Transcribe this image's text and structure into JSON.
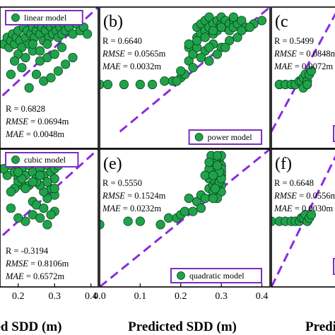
{
  "x_axis_title_left": "ed SDD (m)",
  "x_axis_title_center": "Predicted SDD (m)",
  "x_axis_title_right": "Predi",
  "colors": {
    "marker_fill": "#1fa34a",
    "marker_stroke": "#0b3d1c",
    "fit_line": "#8a2be2",
    "legend_border": "#7b2fbe",
    "axes": "#000000"
  },
  "chart_data": [
    {
      "panel": "a",
      "panel_label": "",
      "type": "scatter",
      "legend": "linear model",
      "legend_position": "top-left",
      "stats": {
        "r": "R = 0.6828",
        "rmse_label": "RMSE",
        "rmse_value": " = 0.0694m",
        "mae_label": "MAE",
        "mae_value": " = 0.0048m"
      },
      "stats_position": "bottom-left",
      "xlim": [
        0.15,
        0.42
      ],
      "ylim": [
        0,
        0.42
      ],
      "x_ticks": [],
      "x_tick_labels": [],
      "fit_line": [
        [
          0.1,
          0.1
        ],
        [
          0.42,
          0.42
        ]
      ],
      "x": [
        0.16,
        0.17,
        0.175,
        0.18,
        0.185,
        0.19,
        0.195,
        0.2,
        0.205,
        0.21,
        0.215,
        0.22,
        0.225,
        0.23,
        0.235,
        0.24,
        0.245,
        0.25,
        0.255,
        0.26,
        0.265,
        0.27,
        0.275,
        0.28,
        0.285,
        0.29,
        0.295,
        0.3,
        0.305,
        0.31,
        0.315,
        0.32,
        0.325,
        0.33,
        0.34,
        0.35,
        0.36,
        0.37,
        0.38,
        0.39,
        0.2,
        0.22,
        0.24,
        0.26,
        0.28,
        0.3,
        0.32,
        0.25,
        0.27,
        0.29,
        0.31,
        0.33,
        0.35,
        0.23,
        0.21,
        0.19,
        0.18,
        0.24,
        0.26,
        0.28
      ],
      "y": [
        0.31,
        0.33,
        0.3,
        0.32,
        0.34,
        0.31,
        0.33,
        0.35,
        0.32,
        0.3,
        0.36,
        0.33,
        0.35,
        0.31,
        0.34,
        0.36,
        0.33,
        0.35,
        0.37,
        0.34,
        0.36,
        0.32,
        0.35,
        0.37,
        0.33,
        0.36,
        0.34,
        0.37,
        0.35,
        0.33,
        0.36,
        0.34,
        0.37,
        0.35,
        0.36,
        0.34,
        0.37,
        0.35,
        0.36,
        0.34,
        0.28,
        0.27,
        0.29,
        0.26,
        0.27,
        0.28,
        0.3,
        0.22,
        0.2,
        0.21,
        0.23,
        0.25,
        0.27,
        0.18,
        0.24,
        0.26,
        0.22,
        0.31,
        0.29,
        0.31
      ]
    },
    {
      "panel": "b",
      "panel_label": "(b)",
      "type": "scatter",
      "legend": "power model",
      "legend_position": "bottom-right",
      "stats": {
        "r": "R = 0.6640",
        "rmse_label": "RMSE",
        "rmse_value": " = 0.0565m",
        "mae_label": "MAE",
        "mae_value": " = 0.0032m"
      },
      "stats_position": "top-left",
      "xlim": [
        0,
        0.42
      ],
      "ylim": [
        0,
        0.42
      ],
      "x_ticks": [],
      "x_tick_labels": [],
      "fit_line": [
        [
          0.05,
          0.05
        ],
        [
          0.42,
          0.42
        ]
      ],
      "x": [
        0.0,
        0.02,
        0.06,
        0.1,
        0.13,
        0.16,
        0.18,
        0.2,
        0.21,
        0.22,
        0.22,
        0.23,
        0.24,
        0.24,
        0.25,
        0.25,
        0.26,
        0.26,
        0.27,
        0.27,
        0.28,
        0.28,
        0.29,
        0.29,
        0.3,
        0.3,
        0.31,
        0.31,
        0.32,
        0.32,
        0.33,
        0.33,
        0.34,
        0.35,
        0.36,
        0.38,
        0.4,
        0.22,
        0.24,
        0.26,
        0.28,
        0.3,
        0.32,
        0.34,
        0.25,
        0.27,
        0.29,
        0.31,
        0.23,
        0.21,
        0.2,
        0.19,
        0.24,
        0.26,
        0.28,
        0.3,
        0.33,
        0.35,
        0.37,
        0.27
      ],
      "y": [
        0.19,
        0.19,
        0.19,
        0.19,
        0.19,
        0.2,
        0.2,
        0.21,
        0.22,
        0.26,
        0.3,
        0.28,
        0.33,
        0.36,
        0.34,
        0.37,
        0.35,
        0.38,
        0.36,
        0.39,
        0.37,
        0.34,
        0.38,
        0.35,
        0.37,
        0.39,
        0.36,
        0.38,
        0.37,
        0.35,
        0.38,
        0.36,
        0.37,
        0.38,
        0.36,
        0.37,
        0.38,
        0.31,
        0.3,
        0.29,
        0.31,
        0.3,
        0.32,
        0.33,
        0.27,
        0.26,
        0.28,
        0.3,
        0.24,
        0.22,
        0.23,
        0.2,
        0.32,
        0.33,
        0.35,
        0.36,
        0.39,
        0.35,
        0.36,
        0.3
      ]
    },
    {
      "panel": "c",
      "panel_label": "(c",
      "type": "scatter",
      "legend": "",
      "legend_position": "bottom-right",
      "stats": {
        "r": "R = 0.5499",
        "rmse_label": "RMSE",
        "rmse_value": " = 0.0848m",
        "mae_label": "MAE",
        "mae_value": " = 0.0072m"
      },
      "stats_position": "top-left",
      "xlim": [
        0,
        0.17
      ],
      "ylim": [
        0,
        0.42
      ],
      "x_ticks": [],
      "x_tick_labels": [],
      "fit_line": [
        [
          0.0,
          0.05
        ],
        [
          0.17,
          0.42
        ]
      ],
      "x": [
        0.02,
        0.035,
        0.05,
        0.06,
        0.07,
        0.075,
        0.08,
        0.085,
        0.09,
        0.095,
        0.1,
        0.08,
        0.09
      ],
      "y": [
        0.19,
        0.19,
        0.19,
        0.19,
        0.2,
        0.2,
        0.21,
        0.22,
        0.2,
        0.22,
        0.23,
        0.18,
        0.19
      ]
    },
    {
      "panel": "d",
      "panel_label": "",
      "type": "scatter",
      "legend": "cubic model",
      "legend_position": "top-left",
      "stats": {
        "r": "R = -0.3194",
        "rmse_label": "RMSE",
        "rmse_value": " = 0.8106m",
        "mae_label": "MAE",
        "mae_value": " = 0.6572m"
      },
      "stats_position": "bottom-right",
      "xlim": [
        0.15,
        0.42
      ],
      "ylim": [
        0,
        0.42
      ],
      "x_ticks": [
        0.2,
        0.3,
        0.4
      ],
      "x_tick_labels": [
        "0.2",
        "0.3",
        "0.4"
      ],
      "fit_line": [
        [
          0.1,
          0.1
        ],
        [
          0.42,
          0.42
        ]
      ],
      "x": [
        0.16,
        0.17,
        0.18,
        0.19,
        0.2,
        0.21,
        0.22,
        0.23,
        0.24,
        0.25,
        0.26,
        0.27,
        0.28,
        0.29,
        0.3,
        0.3,
        0.3,
        0.29,
        0.28,
        0.27,
        0.26,
        0.25,
        0.24,
        0.23,
        0.22,
        0.21,
        0.2,
        0.19,
        0.18,
        0.3,
        0.29,
        0.28,
        0.27,
        0.26,
        0.25,
        0.24,
        0.23,
        0.22,
        0.21,
        0.2,
        0.22,
        0.24,
        0.26,
        0.28,
        0.3,
        0.16,
        0.18,
        0.2,
        0.25,
        0.27,
        0.29,
        0.3,
        0.24,
        0.26,
        0.28,
        0.31
      ],
      "y": [
        0.36,
        0.34,
        0.37,
        0.35,
        0.33,
        0.36,
        0.34,
        0.37,
        0.35,
        0.33,
        0.36,
        0.34,
        0.37,
        0.35,
        0.33,
        0.36,
        0.38,
        0.39,
        0.38,
        0.39,
        0.38,
        0.39,
        0.38,
        0.39,
        0.38,
        0.31,
        0.32,
        0.3,
        0.29,
        0.28,
        0.3,
        0.27,
        0.29,
        0.31,
        0.32,
        0.26,
        0.31,
        0.3,
        0.33,
        0.35,
        0.2,
        0.22,
        0.21,
        0.19,
        0.23,
        0.36,
        0.24,
        0.21,
        0.25,
        0.24,
        0.22,
        0.3,
        0.32,
        0.34,
        0.32,
        0.37
      ]
    },
    {
      "panel": "e",
      "panel_label": "(e)",
      "type": "scatter",
      "legend": "quadratic model",
      "legend_position": "bottom-right",
      "stats": {
        "r": "R = 0.5550",
        "rmse_label": "RMSE",
        "rmse_value": " = 0.1524m",
        "mae_label": "MAE",
        "mae_value": " = 0.0232m"
      },
      "stats_position": "top-left",
      "xlim": [
        0,
        0.42
      ],
      "ylim": [
        0,
        0.42
      ],
      "x_ticks": [
        0.0,
        0.1,
        0.2,
        0.3,
        0.4
      ],
      "x_tick_labels": [
        "0.0",
        "0.1",
        "0.2",
        "0.3",
        "0.4"
      ],
      "fit_line": [
        [
          0.0,
          0.0
        ],
        [
          0.42,
          0.42
        ]
      ],
      "x": [
        0.0,
        0.07,
        0.1,
        0.15,
        0.17,
        0.19,
        0.2,
        0.21,
        0.22,
        0.23,
        0.24,
        0.25,
        0.25,
        0.26,
        0.27,
        0.27,
        0.28,
        0.28,
        0.285,
        0.29,
        0.29,
        0.29,
        0.295,
        0.3,
        0.3,
        0.3,
        0.3,
        0.29,
        0.28,
        0.285,
        0.29,
        0.3,
        0.27,
        0.26,
        0.28,
        0.29,
        0.3,
        0.285,
        0.295,
        0.275,
        0.28,
        0.29,
        0.3,
        0.27,
        0.28,
        0.29,
        0.3,
        0.285,
        0.295,
        0.28,
        0.29
      ],
      "y": [
        0.19,
        0.2,
        0.2,
        0.19,
        0.21,
        0.21,
        0.22,
        0.23,
        0.27,
        0.23,
        0.26,
        0.24,
        0.28,
        0.27,
        0.3,
        0.33,
        0.31,
        0.35,
        0.37,
        0.33,
        0.36,
        0.39,
        0.38,
        0.34,
        0.37,
        0.4,
        0.31,
        0.3,
        0.28,
        0.32,
        0.34,
        0.29,
        0.36,
        0.34,
        0.38,
        0.31,
        0.35,
        0.39,
        0.32,
        0.4,
        0.29,
        0.27,
        0.33,
        0.38,
        0.27,
        0.4,
        0.36,
        0.3,
        0.35,
        0.34,
        0.37
      ]
    },
    {
      "panel": "f",
      "panel_label": "(f)",
      "type": "scatter",
      "legend": "",
      "legend_position": "bottom-right",
      "stats": {
        "r": "R = 0.6648",
        "rmse_label": "RMSE",
        "rmse_value": " = 0.0556m",
        "mae_label": "MAE",
        "mae_value": " = 0.0030m"
      },
      "stats_position": "top-left",
      "xlim": [
        0,
        0.17
      ],
      "ylim": [
        0,
        0.42
      ],
      "x_ticks": [],
      "x_tick_labels": [],
      "fit_line": [
        [
          0.0,
          0.0
        ],
        [
          0.17,
          0.42
        ]
      ],
      "x": [
        0.0,
        0.02,
        0.035,
        0.05,
        0.06,
        0.07,
        0.075,
        0.08,
        0.085,
        0.09,
        0.095,
        0.1
      ],
      "y": [
        0.2,
        0.2,
        0.2,
        0.2,
        0.2,
        0.2,
        0.21,
        0.21,
        0.22,
        0.2,
        0.21,
        0.22
      ]
    }
  ]
}
